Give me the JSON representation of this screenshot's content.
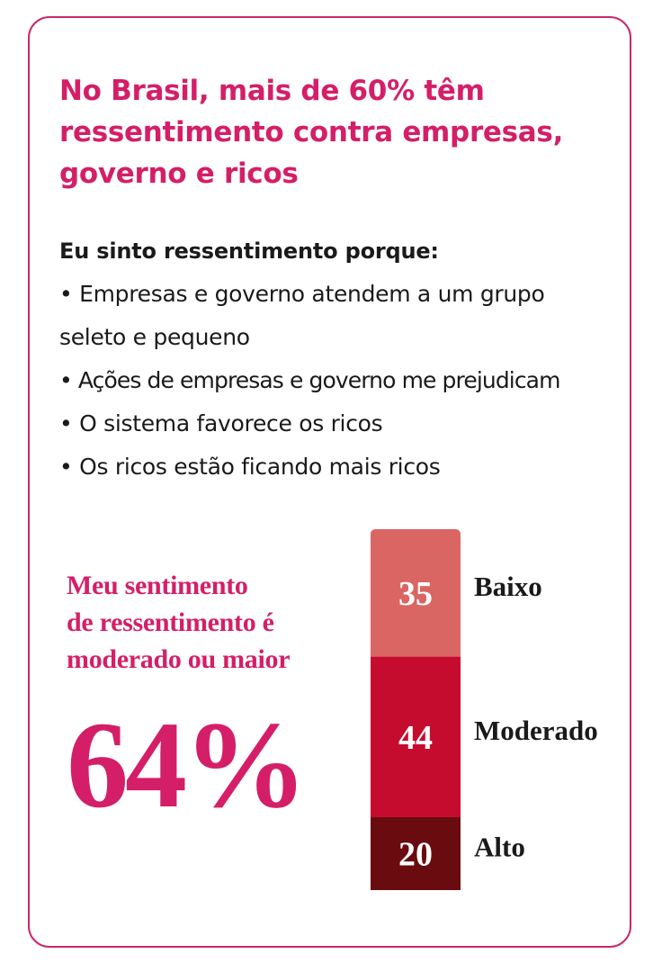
{
  "headline": {
    "lines": [
      "No Brasil, mais de 60% têm",
      "ressentimento contra empresas,",
      "governo e ricos"
    ]
  },
  "reasons": {
    "intro": "Eu sinto ressentimento porque:",
    "items": [
      {
        "lines": [
          "• Empresas e governo atendem a um grupo",
          "seleto e pequeno"
        ]
      },
      {
        "lines": [
          "• Ações de empresas e governo me prejudicam"
        ]
      },
      {
        "lines": [
          "• O sistema favorece os ricos"
        ]
      },
      {
        "lines": [
          "• Os ricos estão ficando mais ricos"
        ]
      }
    ]
  },
  "summary": {
    "label_lines": [
      "Meu sentimento",
      "de ressentimento é",
      "moderado ou maior"
    ],
    "value": "64%"
  },
  "colors": {
    "accent": "#d41f68",
    "border": "#c8286e",
    "baixo": "#d96663",
    "moderado": "#c60c2e",
    "alto": "#6a0b10"
  },
  "chart_data": {
    "type": "bar",
    "stacked": true,
    "orientation": "vertical",
    "categories": [
      "Baixo",
      "Moderado",
      "Alto"
    ],
    "values": [
      35,
      44,
      20
    ],
    "colors": [
      "#d96663",
      "#c60c2e",
      "#6a0b10"
    ]
  }
}
